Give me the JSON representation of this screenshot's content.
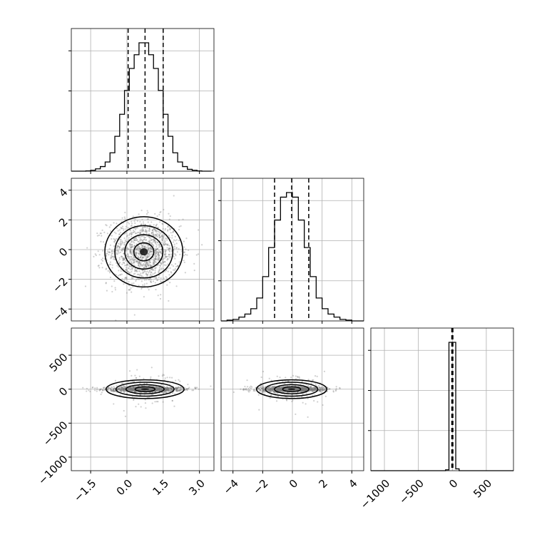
{
  "chart_data": {
    "type": "corner",
    "grid": true,
    "params": [
      {
        "name": "",
        "range": [
          -2.3,
          3.6
        ],
        "ticks": [
          -1.5,
          0.0,
          1.5,
          3.0
        ],
        "tick_labels": [
          "−1.5",
          "0.0",
          "1.5",
          "3.0"
        ],
        "quantiles": [
          0.05,
          0.75,
          1.5
        ]
      },
      {
        "name": "",
        "range": [
          -4.8,
          4.8
        ],
        "ticks": [
          -4,
          -2,
          0,
          2,
          4
        ],
        "tick_labels": [
          "−4",
          "−2",
          "0",
          "2",
          "4"
        ],
        "quantiles": [
          -1.2,
          -0.05,
          1.1
        ]
      },
      {
        "name": "",
        "range": [
          -1200,
          900
        ],
        "ticks": [
          -1000,
          -500,
          0,
          500
        ],
        "tick_labels": [
          "−1000",
          "−500",
          "0",
          "500"
        ],
        "quantiles": [
          -8,
          0,
          8
        ]
      }
    ],
    "hist": [
      {
        "bins": [
          -2.3,
          -2.1,
          -1.9,
          -1.7,
          -1.5,
          -1.3,
          -1.1,
          -0.9,
          -0.7,
          -0.5,
          -0.3,
          -0.1,
          0.1,
          0.3,
          0.5,
          0.7,
          0.9,
          1.1,
          1.3,
          1.5,
          1.7,
          1.9,
          2.1,
          2.3,
          2.5,
          2.7,
          2.9,
          3.1,
          3.3,
          3.5
        ],
        "counts": [
          0,
          0,
          0,
          0.3,
          1,
          2.5,
          5,
          10,
          20,
          38,
          62,
          88,
          112,
          127,
          140,
          140,
          127,
          112,
          88,
          62,
          38,
          20,
          10,
          5,
          2,
          1,
          0.3,
          0,
          0
        ]
      },
      {
        "bins": [
          -4.8,
          -4.4,
          -4.0,
          -3.6,
          -3.2,
          -2.8,
          -2.4,
          -2.0,
          -1.6,
          -1.2,
          -0.8,
          -0.4,
          0.0,
          0.4,
          0.8,
          1.2,
          1.6,
          2.0,
          2.4,
          2.8,
          3.2,
          3.6,
          4.0,
          4.4,
          4.8
        ],
        "counts": [
          0,
          1,
          2,
          5,
          9,
          16,
          30,
          58,
          96,
          132,
          162,
          168,
          162,
          132,
          96,
          58,
          30,
          16,
          9,
          5,
          2,
          1,
          0,
          0
        ]
      },
      {
        "bins": [
          -1200,
          -1100,
          -1000,
          -900,
          -800,
          -700,
          -600,
          -500,
          -400,
          -300,
          -200,
          -100,
          -50,
          50,
          100,
          200,
          300,
          400,
          500,
          600,
          700,
          800,
          900
        ],
        "counts": [
          0,
          0,
          0,
          0,
          0,
          0,
          0,
          0,
          0,
          0,
          0,
          1,
          140,
          2,
          0,
          0,
          0,
          0,
          0,
          0,
          0,
          0
        ]
      }
    ],
    "pairs": [
      {
        "x": 0,
        "y": 1,
        "center": [
          0.7,
          -0.15
        ],
        "sigma": [
          0.75,
          1.1
        ]
      },
      {
        "x": 0,
        "y": 2,
        "center": [
          0.75,
          0
        ],
        "sigma": [
          0.75,
          20
        ]
      },
      {
        "x": 1,
        "y": 2,
        "center": [
          -0.05,
          0
        ],
        "sigma": [
          1.1,
          20
        ]
      }
    ]
  }
}
